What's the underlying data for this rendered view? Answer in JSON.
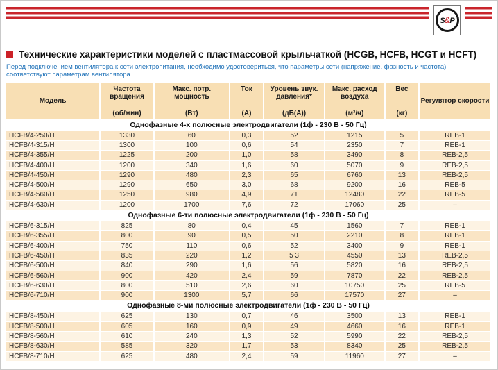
{
  "banner": {
    "logo": {
      "s": "S",
      "amp": "&",
      "p": "P"
    }
  },
  "title": "Технические характеристики моделей с пластмассовой крыльчаткой (HCGB, HCFB, HCGT и HCFT)",
  "subtitle": "Перед подключением вентилятора к сети электропитания, необходимо удостовериться, что параметры сети (напряжение, фазность и частота) соответствуют параметрам вентилятора.",
  "colors": {
    "accent_red": "#c9252c",
    "subtitle_blue": "#2173b9",
    "header_bg": "#f8dfb4",
    "row_light": "#fdf3e3",
    "row_dark": "#fae5c5"
  },
  "table": {
    "columns": [
      {
        "label": "Модель",
        "unit": ""
      },
      {
        "label": "Частота вращения",
        "unit": "(об/мин)"
      },
      {
        "label": "Макс. потр. мощность",
        "unit": "(Вт)"
      },
      {
        "label": "Ток",
        "unit": "(А)"
      },
      {
        "label": "Уровень звук. давления*",
        "unit": "(дБ(А))"
      },
      {
        "label": "Макс. расход воздуха",
        "unit": "(м³/ч)"
      },
      {
        "label": "Вес",
        "unit": "(кг)"
      },
      {
        "label": "Регулятор скорости",
        "unit": ""
      }
    ],
    "sections": [
      {
        "header": "Однофазные 4-х полюсные электродвигатели (1ф - 230 В - 50 Гц)",
        "first_row_dark": true,
        "rows": [
          [
            "HCFB/4-250/H",
            "1330",
            "60",
            "0,3",
            "52",
            "1215",
            "5",
            "REB-1"
          ],
          [
            "HCFB/4-315/H",
            "1300",
            "100",
            "0,6",
            "54",
            "2350",
            "7",
            "REB-1"
          ],
          [
            "HCFB/4-355/H",
            "1225",
            "200",
            "1,0",
            "58",
            "3490",
            "8",
            "REB-2,5"
          ],
          [
            "HCFB/4-400/H",
            "1200",
            "340",
            "1,6",
            "60",
            "5070",
            "9",
            "REB-2,5"
          ],
          [
            "HCFB/4-450/H",
            "1290",
            "480",
            "2,3",
            "65",
            "6760",
            "13",
            "REB-2,5"
          ],
          [
            "HCFB/4-500/H",
            "1290",
            "650",
            "3,0",
            "68",
            "9200",
            "16",
            "REB-5"
          ],
          [
            "HCFB/4-560/H",
            "1250",
            "980",
            "4,9",
            "71",
            "12480",
            "22",
            "REB-5"
          ],
          [
            "HCFB/4-630/H",
            "1200",
            "1700",
            "7,6",
            "72",
            "17060",
            "25",
            "–"
          ]
        ]
      },
      {
        "header": "Однофазные 6-ти полюсные электродвигатели (1ф - 230 В - 50 Гц)",
        "first_row_dark": false,
        "rows": [
          [
            "HCFB/6-315/H",
            "825",
            "80",
            "0,4",
            "45",
            "1560",
            "7",
            "REB-1"
          ],
          [
            "HCFB/6-355/H",
            "800",
            "90",
            "0,5",
            "50",
            "2210",
            "8",
            "REB-1"
          ],
          [
            "HCFB/6-400/H",
            "750",
            "110",
            "0,6",
            "52",
            "3400",
            "9",
            "REB-1"
          ],
          [
            "HCFB/6-450/H",
            "835",
            "220",
            "1,2",
            "5 3",
            "4550",
            "13",
            "REB-2,5"
          ],
          [
            "HCFB/6-500/H",
            "840",
            "290",
            "1,6",
            "56",
            "5820",
            "16",
            "REB-2,5"
          ],
          [
            "HCFB/6-560/H",
            "900",
            "420",
            "2,4",
            "59",
            "7870",
            "22",
            "REB-2,5"
          ],
          [
            "HCFB/6-630/H",
            "800",
            "510",
            "2,6",
            "60",
            "10750",
            "25",
            "REB-5"
          ],
          [
            "HCFB/6-710/H",
            "900",
            "1300",
            "5,7",
            "66",
            "17570",
            "27",
            "–"
          ]
        ]
      },
      {
        "header": "Однофазные 8-ми полюсные электродвигатели (1ф - 230 В - 50 Гц)",
        "first_row_dark": false,
        "rows": [
          [
            "HCFB/8-450/H",
            "625",
            "130",
            "0,7",
            "46",
            "3500",
            "13",
            "REB-1"
          ],
          [
            "HCFB/8-500/H",
            "605",
            "160",
            "0,9",
            "49",
            "4660",
            "16",
            "REB-1"
          ],
          [
            "HCFB/8-560/H",
            "610",
            "240",
            "1,3",
            "52",
            "5990",
            "22",
            "REB-2,5"
          ],
          [
            "HCFB/8-630/H",
            "585",
            "320",
            "1,7",
            "53",
            "8340",
            "25",
            "REB-2,5"
          ],
          [
            "HCFB/8-710/H",
            "625",
            "480",
            "2,4",
            "59",
            "11960",
            "27",
            "–"
          ]
        ]
      }
    ]
  }
}
